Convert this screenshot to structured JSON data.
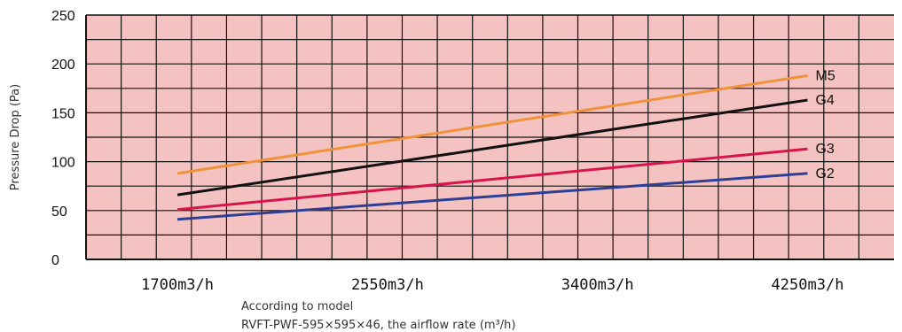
{
  "chart_data": {
    "type": "line",
    "title": "",
    "ylabel": "Pressure Drop (Pa)",
    "xlabel_lines": [
      "According to model",
      "RVFT-PWF-595×595×46, the airflow rate (m³/h)"
    ],
    "ylim": [
      0,
      250
    ],
    "y_ticks": [
      "0",
      "50",
      "100",
      "150",
      "200",
      "250"
    ],
    "x_ticks": [
      "1700m3/h",
      "2550m3/h",
      "3400m3/h",
      "4250m3/h"
    ],
    "x": [
      1700,
      4250
    ],
    "xlim": [
      1330,
      4600
    ],
    "grid": true,
    "background": "#f4c2c0",
    "series": [
      {
        "name": "M5",
        "color": "#f0923a",
        "x": [
          1700,
          4250
        ],
        "y": [
          88,
          188
        ]
      },
      {
        "name": "G4",
        "color": "#111111",
        "x": [
          1700,
          4250
        ],
        "y": [
          66,
          163
        ]
      },
      {
        "name": "G3",
        "color": "#d8144c",
        "x": [
          1700,
          4250
        ],
        "y": [
          51,
          113
        ]
      },
      {
        "name": "G2",
        "color": "#2c3f95",
        "x": [
          1700,
          4250
        ],
        "y": [
          41,
          88
        ]
      }
    ]
  }
}
